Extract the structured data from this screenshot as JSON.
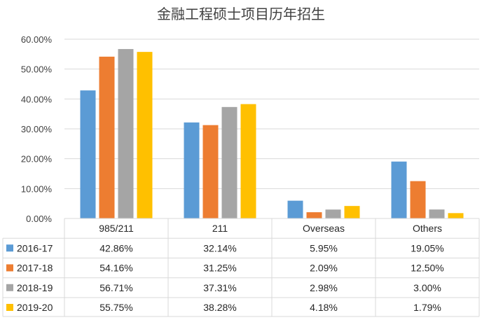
{
  "chart_data": {
    "type": "bar",
    "title": "金融工程硕士项目历年招生",
    "categories": [
      "985/211",
      "211",
      "Overseas",
      "Others"
    ],
    "ylim": [
      0,
      60
    ],
    "yticks": [
      "0.00%",
      "10.00%",
      "20.00%",
      "30.00%",
      "40.00%",
      "50.00%",
      "60.00%"
    ],
    "grid": true,
    "legend": "data-table",
    "series": [
      {
        "name": "2016-17",
        "color": "#5B9BD5",
        "values": [
          42.86,
          32.14,
          5.95,
          19.05
        ],
        "labels": [
          "42.86%",
          "32.14%",
          "5.95%",
          "19.05%"
        ]
      },
      {
        "name": "2017-18",
        "color": "#ED7D31",
        "values": [
          54.16,
          31.25,
          2.09,
          12.5
        ],
        "labels": [
          "54.16%",
          "31.25%",
          "2.09%",
          "12.50%"
        ]
      },
      {
        "name": "2018-19",
        "color": "#A5A5A5",
        "values": [
          56.71,
          37.31,
          2.98,
          3.0
        ],
        "labels": [
          "56.71%",
          "37.31%",
          "2.98%",
          "3.00%"
        ]
      },
      {
        "name": "2019-20",
        "color": "#FFC000",
        "values": [
          55.75,
          38.28,
          4.18,
          1.79
        ],
        "labels": [
          "55.75%",
          "38.28%",
          "4.18%",
          "1.79%"
        ]
      }
    ]
  }
}
